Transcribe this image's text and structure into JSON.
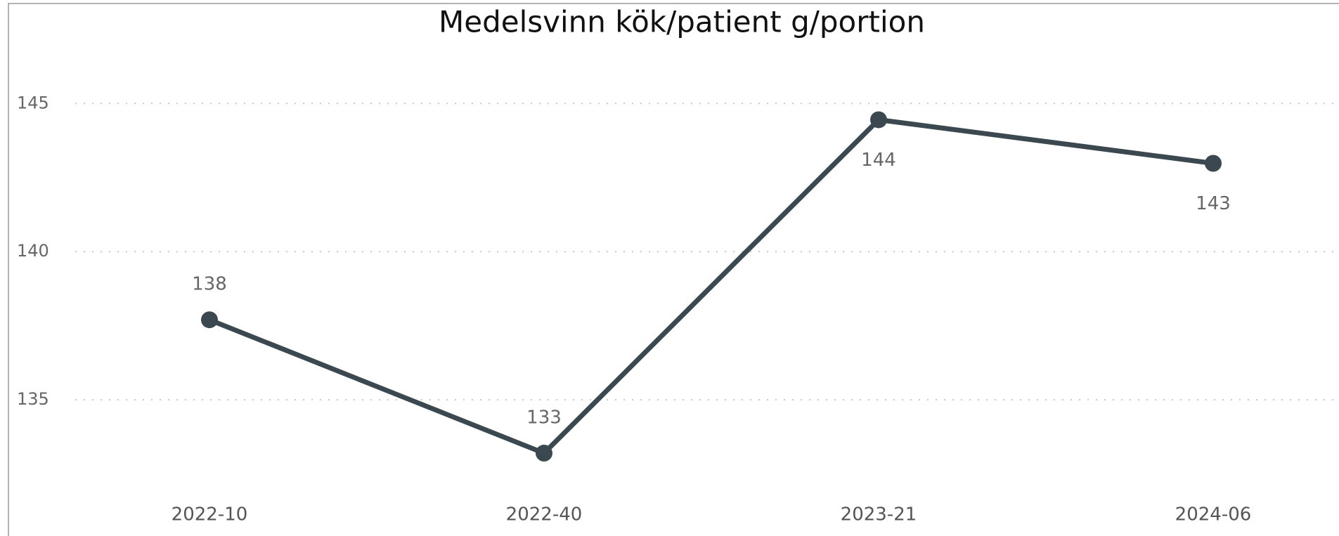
{
  "chart_data": {
    "type": "line",
    "title": "Medelsvinn kök/patient g/portion",
    "categories": [
      "2022-10",
      "2022-40",
      "2023-21",
      "2024-06"
    ],
    "series": [
      {
        "name": "Medelsvinn",
        "color": "#3b4850",
        "values": [
          137.7,
          133.2,
          144.45,
          142.98
        ],
        "value_labels": [
          "138",
          "133",
          "144",
          "143"
        ]
      }
    ],
    "ylim": [
      132.3,
      146.5
    ],
    "yticks": [
      135,
      140,
      145
    ],
    "grid": true
  }
}
